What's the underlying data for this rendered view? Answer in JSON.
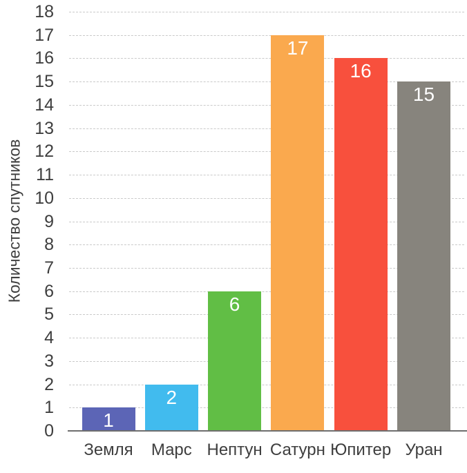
{
  "chart_data": {
    "type": "bar",
    "title": "",
    "xlabel": "",
    "ylabel": "Количество спутников",
    "categories": [
      "Земля",
      "Марс",
      "Нептун",
      "Сатурн",
      "Юпитер",
      "Уран"
    ],
    "values": [
      1,
      2,
      6,
      17,
      16,
      15
    ],
    "value_labels": [
      "1",
      "2",
      "6",
      "17",
      "16",
      "15"
    ],
    "bar_colors": [
      "#5c65b6",
      "#41bbee",
      "#61be45",
      "#faa94e",
      "#f8503d",
      "#87847d"
    ],
    "ylim": [
      0,
      18
    ],
    "y_ticks": [
      0,
      1,
      2,
      3,
      4,
      5,
      6,
      7,
      8,
      9,
      10,
      11,
      12,
      13,
      14,
      15,
      16,
      17,
      18
    ],
    "grid": "horizontal-dashed",
    "grid_color": "#c9c9c9",
    "axis_line_color": "#6e6e6e",
    "tick_label_color": "#3e3e3e",
    "value_label_color": "#ffffff",
    "legend": "none",
    "background_color": "#ffffff"
  }
}
